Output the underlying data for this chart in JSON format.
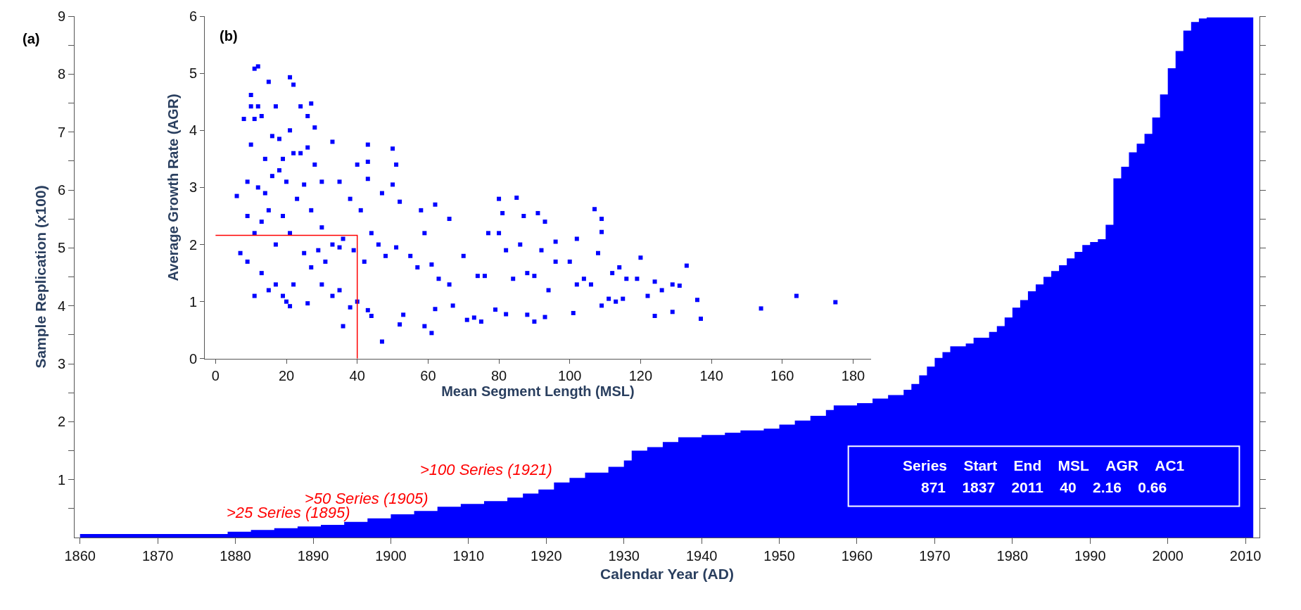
{
  "chart_data": [
    {
      "type": "area",
      "title": "(a)",
      "xlabel": "Calendar Year (AD)",
      "ylabel": "Sample Replication (x100)",
      "xlim": [
        1859.3,
        2011.8
      ],
      "ylim": [
        0,
        9
      ],
      "xticks": [
        1860,
        1870,
        1880,
        1890,
        1900,
        1910,
        1920,
        1930,
        1940,
        1950,
        1960,
        1970,
        1980,
        1990,
        2000,
        2010
      ],
      "yticks": [
        {
          "value": 0.5,
          "label": null
        },
        1,
        {
          "value": 1.5,
          "label": null
        },
        2,
        {
          "value": 2.5,
          "label": null
        },
        3,
        {
          "value": 3.5,
          "label": null
        },
        4,
        {
          "value": 4.5,
          "label": null
        },
        5,
        {
          "value": 5.5,
          "label": null
        },
        6,
        {
          "value": 6.5,
          "label": null
        },
        7,
        {
          "value": 7.5,
          "label": null
        },
        8,
        {
          "value": 8.5,
          "label": null
        },
        9
      ],
      "x": [
        1860,
        1879,
        1882,
        1885,
        1888,
        1891,
        1894,
        1897,
        1900,
        1903,
        1906,
        1909,
        1912,
        1915,
        1917,
        1919,
        1921,
        1923,
        1925,
        1928,
        1930,
        1931,
        1933,
        1935,
        1937,
        1940,
        1943,
        1945,
        1948,
        1950,
        1952,
        1954,
        1956,
        1957,
        1960,
        1962,
        1964,
        1966,
        1967,
        1968,
        1969,
        1970,
        1971,
        1972,
        1974,
        1975,
        1977,
        1978,
        1979,
        1980,
        1981,
        1982,
        1983,
        1984,
        1985,
        1986,
        1987,
        1988,
        1989,
        1990,
        1991,
        1992,
        1993,
        1994,
        1995,
        1996,
        1997,
        1998,
        1999,
        2000,
        2001,
        2002,
        2003,
        2004,
        2005,
        2011
      ],
      "series": [
        {
          "color": "#0000ff",
          "values": [
            0.06,
            0.1,
            0.13,
            0.16,
            0.19,
            0.22,
            0.27,
            0.33,
            0.4,
            0.46,
            0.53,
            0.58,
            0.63,
            0.69,
            0.76,
            0.83,
            0.95,
            1.03,
            1.12,
            1.22,
            1.33,
            1.5,
            1.56,
            1.65,
            1.73,
            1.77,
            1.81,
            1.85,
            1.88,
            1.95,
            2.02,
            2.1,
            2.2,
            2.28,
            2.32,
            2.4,
            2.46,
            2.55,
            2.65,
            2.8,
            2.95,
            3.1,
            3.2,
            3.3,
            3.35,
            3.45,
            3.55,
            3.65,
            3.8,
            3.97,
            4.1,
            4.25,
            4.37,
            4.5,
            4.6,
            4.7,
            4.82,
            4.93,
            5.05,
            5.1,
            5.15,
            5.4,
            6.2,
            6.4,
            6.65,
            6.8,
            6.97,
            7.25,
            7.65,
            8.1,
            8.4,
            8.75,
            8.9,
            8.96,
            8.98,
            8.98
          ]
        }
      ],
      "annotations": [
        {
          "text": ">25 Series (1895)",
          "x": 1895,
          "y": 0.25
        },
        {
          "text": ">50 Series (1905)",
          "x": 1905,
          "y": 0.5
        },
        {
          "text": ">100 Series (1921)",
          "x": 1921,
          "y": 1.0
        },
        "Series Start End MSL AGR AC1\n871 1837 2011 40 2.16 0.66"
      ]
    },
    {
      "type": "scatter",
      "title": "(b)",
      "xlabel": "Mean Segment Length (MSL)",
      "ylabel": "Average Growth Rate (AGR)",
      "xlim": [
        -3,
        185
      ],
      "ylim": [
        0,
        6
      ],
      "xticks": [
        0,
        20,
        40,
        60,
        80,
        100,
        120,
        140,
        160,
        180
      ],
      "yticks": [
        0,
        1,
        2,
        3,
        4,
        5,
        6
      ],
      "series": [
        {
          "color": "#0000ff",
          "marker": "square",
          "x": [
            12,
            11,
            21,
            22,
            15,
            10,
            10,
            12,
            17,
            11,
            13,
            8,
            24,
            27,
            26,
            21,
            24,
            26,
            28,
            33,
            43,
            50,
            16,
            18,
            10,
            14,
            19,
            22,
            28,
            40,
            43,
            51,
            43,
            50,
            6,
            9,
            12,
            14,
            16,
            18,
            20,
            25,
            30,
            35,
            38,
            41,
            47,
            52,
            62,
            58,
            66,
            80,
            85,
            81,
            87,
            91,
            93,
            107,
            109,
            109,
            102,
            96,
            9,
            11,
            13,
            15,
            17,
            19,
            21,
            23,
            27,
            30,
            33,
            36,
            39,
            42,
            44,
            46,
            48,
            51,
            55,
            57,
            59,
            61,
            63,
            66,
            70,
            74,
            76,
            77,
            80,
            82,
            84,
            86,
            88,
            90,
            92,
            94,
            96,
            100,
            102,
            104,
            106,
            108,
            112,
            114,
            116,
            119,
            120,
            122,
            124,
            126,
            129,
            131,
            133,
            136,
            129,
            124,
            137,
            154,
            164,
            175,
            47,
            61,
            59,
            36,
            38,
            40,
            44,
            43,
            52,
            53,
            62,
            67,
            71,
            73,
            75,
            79,
            82,
            88,
            90,
            93,
            101,
            109,
            111,
            113,
            115,
            7,
            9,
            11,
            13,
            15,
            17,
            19,
            20,
            21,
            26,
            30,
            33,
            35,
            22,
            27,
            31,
            25,
            29,
            35
          ],
          "values": [
            5.12,
            5.08,
            4.93,
            4.8,
            4.85,
            4.62,
            4.42,
            4.42,
            4.42,
            4.2,
            4.25,
            4.2,
            4.42,
            4.47,
            4.25,
            4.0,
            3.6,
            3.7,
            4.05,
            3.8,
            3.75,
            3.68,
            3.9,
            3.85,
            3.75,
            3.5,
            3.5,
            3.6,
            3.4,
            3.4,
            3.45,
            3.4,
            3.15,
            3.05,
            2.85,
            3.1,
            3.0,
            2.9,
            3.2,
            3.3,
            3.1,
            3.05,
            3.1,
            3.1,
            2.8,
            2.6,
            2.9,
            2.75,
            2.7,
            2.6,
            2.45,
            2.8,
            2.82,
            2.55,
            2.5,
            2.55,
            2.4,
            2.62,
            2.45,
            2.22,
            2.1,
            2.05,
            2.5,
            2.2,
            2.4,
            2.6,
            2.0,
            2.5,
            2.2,
            2.8,
            2.6,
            2.3,
            2.0,
            2.1,
            1.9,
            1.7,
            2.2,
            2.0,
            1.8,
            1.95,
            1.8,
            1.6,
            2.2,
            1.65,
            1.4,
            1.3,
            1.8,
            1.45,
            1.45,
            2.2,
            2.2,
            1.9,
            1.4,
            2.0,
            1.5,
            1.45,
            1.9,
            1.2,
            1.7,
            1.7,
            1.3,
            1.4,
            1.3,
            1.85,
            1.5,
            1.6,
            1.4,
            1.4,
            1.77,
            1.1,
            1.35,
            1.2,
            1.3,
            1.28,
            1.63,
            1.03,
            0.82,
            0.75,
            0.7,
            0.88,
            1.1,
            0.99,
            0.3,
            0.45,
            0.57,
            0.57,
            0.9,
            1.0,
            0.75,
            0.85,
            0.6,
            0.77,
            0.87,
            0.93,
            0.68,
            0.72,
            0.65,
            0.86,
            0.78,
            0.77,
            0.65,
            0.73,
            0.8,
            0.93,
            1.05,
            1.0,
            1.05,
            1.85,
            1.7,
            1.1,
            1.5,
            1.2,
            1.3,
            1.1,
            1.0,
            0.92,
            0.97,
            1.3,
            1.1,
            1.2,
            1.3,
            1.6,
            1.7,
            1.85,
            1.9,
            1.95
          ]
        },
        {
          "type": "line",
          "color": "#ff0000",
          "x": [
            0,
            40,
            40
          ],
          "values": [
            2.16,
            2.16,
            0
          ]
        }
      ]
    }
  ]
}
